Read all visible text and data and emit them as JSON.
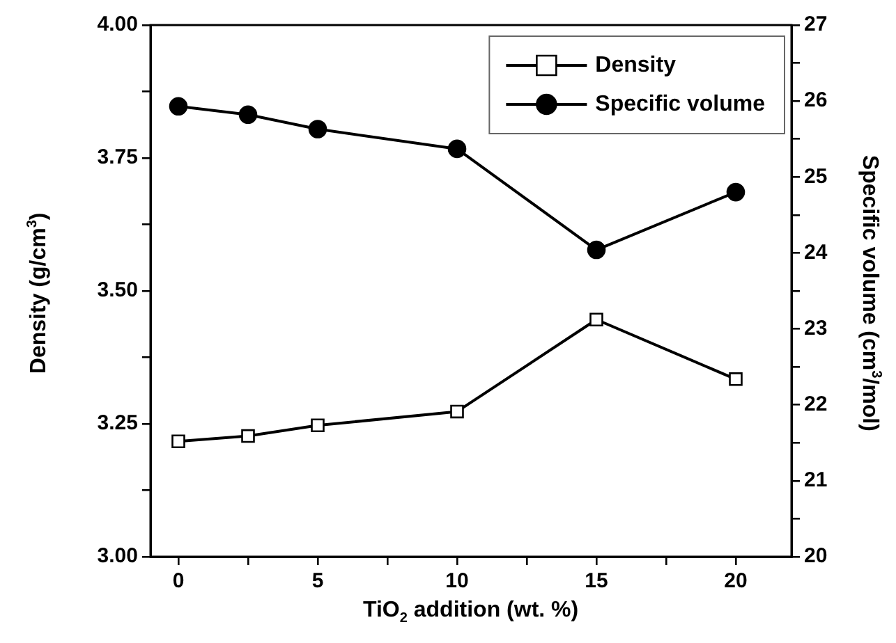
{
  "chart_data": {
    "type": "line",
    "xlabel": "TiO$_{2}$ addition (wt. %)",
    "ylabel": "Density (g/cm$^{3}$)",
    "y2label": "Specific volume (cm$^{3}$/mol)",
    "x": [
      0,
      2.5,
      5,
      10,
      15,
      20
    ],
    "series": [
      {
        "name": "Density",
        "color": "#000000",
        "marker": "square",
        "values": [
          3.217,
          3.227,
          3.247,
          3.273,
          3.446,
          3.334
        ]
      },
      {
        "name": "Specific volume",
        "color": "#000000",
        "marker": "circle",
        "axis": "y2",
        "values": [
          25.93,
          25.82,
          25.63,
          25.37,
          24.04,
          24.8
        ]
      }
    ],
    "xlim": [
      -1,
      22
    ],
    "xticks": [
      0,
      {
        "value": 2.5,
        "label": null
      },
      5,
      {
        "value": 7.5,
        "label": null
      },
      10,
      {
        "value": 12.5,
        "label": null
      },
      15,
      {
        "value": 17.5,
        "label": null
      },
      20
    ],
    "ylim": [
      3,
      4
    ],
    "yticks": [
      {
        "value": 3,
        "label": "3.00"
      },
      {
        "value": 3.125,
        "label": null
      },
      {
        "value": 3.25,
        "label": "3.25"
      },
      {
        "value": 3.375,
        "label": null
      },
      {
        "value": 3.5,
        "label": "3.50"
      },
      {
        "value": 3.625,
        "label": null
      },
      {
        "value": 3.75,
        "label": "3.75"
      },
      {
        "value": 3.875,
        "label": null
      },
      {
        "value": 4,
        "label": "4.00"
      }
    ],
    "y2lim": [
      20,
      27
    ],
    "y2ticks": [
      20,
      {
        "value": 20.5,
        "label": null
      },
      21,
      {
        "value": 21.5,
        "label": null
      },
      22,
      {
        "value": 22.5,
        "label": null
      },
      23,
      {
        "value": 23.5,
        "label": null
      },
      24,
      {
        "value": 24.5,
        "label": null
      },
      25,
      {
        "value": 25.5,
        "label": null
      },
      26,
      {
        "value": 26.5,
        "label": null
      },
      27
    ],
    "legend": "top right",
    "grid": false,
    "line_style": "solid"
  }
}
